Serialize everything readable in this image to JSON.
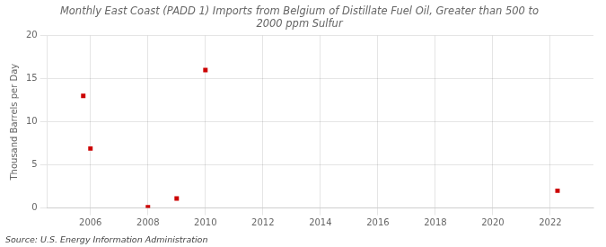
{
  "chart_data": {
    "type": "scatter",
    "title": [
      "Monthly East Coast (PADD 1) Imports from Belgium of Distillate Fuel Oil, Greater than 500 to",
      "2000 ppm Sulfur"
    ],
    "ylabel": "Thousand Barrels per Day",
    "annotation": "Source: U.S. Energy Information Administration",
    "x": [
      2005.75,
      2006.0,
      2008.0,
      2009.0,
      2010.0,
      2022.25
    ],
    "values": [
      13.0,
      6.9,
      0.1,
      1.1,
      16.0,
      2.0
    ],
    "color": "#cc0000",
    "marker": "square",
    "xlim": [
      2004.5,
      2023.5
    ],
    "xticks": [
      2006,
      2008,
      2010,
      2012,
      2014,
      2016,
      2018,
      2020,
      2022
    ],
    "ylim": [
      0,
      20
    ],
    "yticks": [
      0,
      5,
      10,
      15,
      20
    ],
    "grid": true
  }
}
